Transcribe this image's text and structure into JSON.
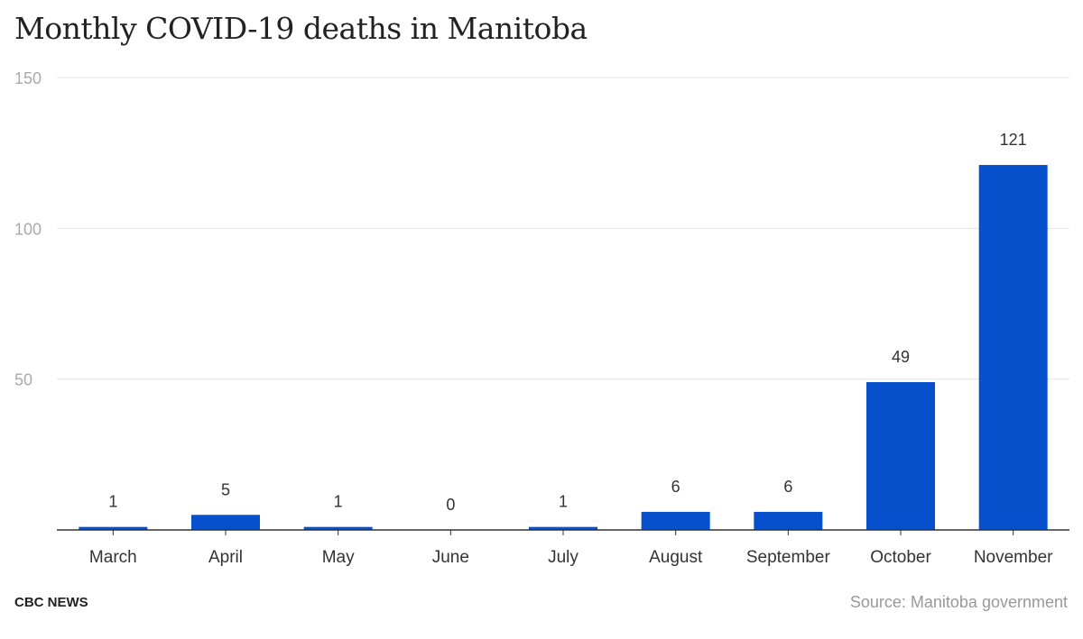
{
  "title": "Monthly COVID-19 deaths in Manitoba",
  "footer": {
    "brand": "CBC NEWS",
    "source": "Source: Manitoba government"
  },
  "colors": {
    "bar": "#0650cc",
    "grid": "#e3e3e3",
    "axis": "#333333",
    "tick_text": "#aaaaaa",
    "label_text": "#333333"
  },
  "chart_data": {
    "type": "bar",
    "title": "Monthly COVID-19 deaths in Manitoba",
    "categories": [
      "March",
      "April",
      "May",
      "June",
      "July",
      "August",
      "September",
      "October",
      "November"
    ],
    "values": [
      1,
      5,
      1,
      0,
      1,
      6,
      6,
      49,
      121
    ],
    "xlabel": "",
    "ylabel": "",
    "ylim": [
      0,
      150
    ],
    "yticks": [
      50,
      100,
      150
    ],
    "grid": true,
    "data_labels": true
  }
}
